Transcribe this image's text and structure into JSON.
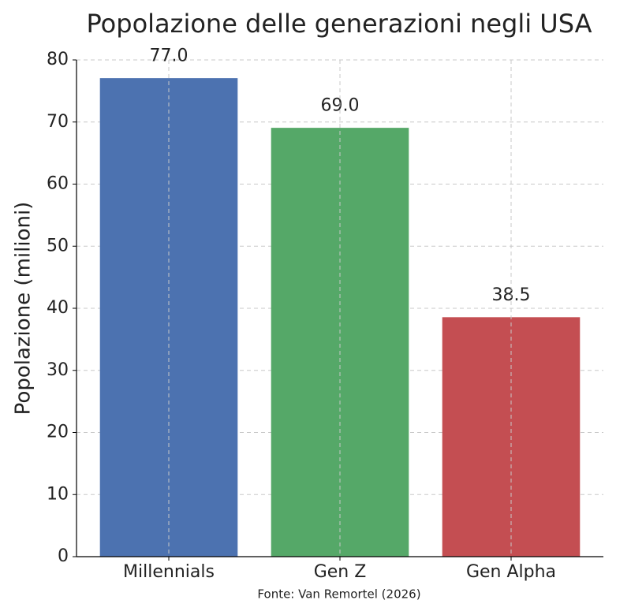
{
  "chart_data": {
    "type": "bar",
    "title": "Popolazione delle generazioni negli USA",
    "y_label": "Popolazione (milioni)",
    "categories": [
      "Millennials",
      "Gen Z",
      "Gen Alpha"
    ],
    "values": [
      77,
      69,
      38.5
    ],
    "value_labels": [
      "77.0",
      "69.0",
      "38.5"
    ],
    "colors": [
      "#4c72b0",
      "#55a868",
      "#c44e52"
    ],
    "ylim": [
      0,
      80
    ],
    "yticks": [
      0,
      10,
      20,
      30,
      40,
      50,
      60,
      70,
      80
    ],
    "grid": true,
    "source": "Fonte: Van Remortel (2026)"
  }
}
